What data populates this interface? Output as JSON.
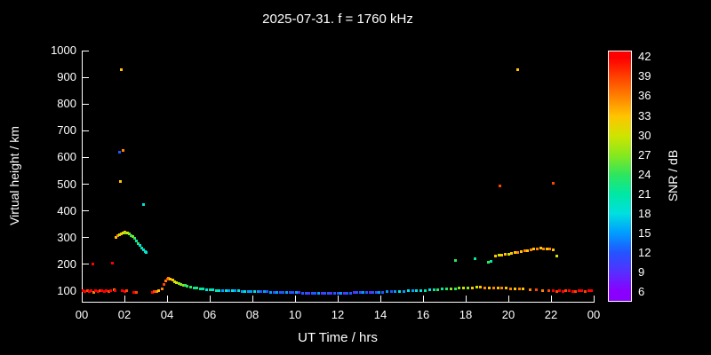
{
  "chart_data": {
    "type": "scatter",
    "title": "2025-07-31. f = 1760 kHz",
    "xlabel": "UT Time / hrs",
    "ylabel": "Virtual height / km",
    "xlim": [
      0,
      24
    ],
    "ylim": [
      60,
      1000
    ],
    "xtick_values": [
      0,
      2,
      4,
      6,
      8,
      10,
      12,
      14,
      16,
      18,
      20,
      22,
      24
    ],
    "xtick_labels": [
      "00",
      "02",
      "04",
      "06",
      "08",
      "10",
      "12",
      "14",
      "16",
      "18",
      "20",
      "22",
      "00"
    ],
    "ytick_values": [
      100,
      200,
      300,
      400,
      500,
      600,
      700,
      800,
      900,
      1000
    ],
    "background": "#000000",
    "axis_color": "#ffffff",
    "text_color": "#ffffff",
    "grid": false,
    "colorbar": {
      "label": "SNR / dB",
      "ticks": [
        6,
        9,
        12,
        15,
        18,
        21,
        24,
        27,
        30,
        33,
        36,
        39,
        42
      ],
      "range": [
        4.5,
        43
      ],
      "colors": {
        "6": "#8a00ff",
        "9": "#5530ff",
        "12": "#2255ff",
        "15": "#009dff",
        "18": "#00e0df",
        "21": "#00e8a4",
        "24": "#2ee55e",
        "27": "#86e81e",
        "30": "#cfe400",
        "33": "#ffc400",
        "36": "#ff8300",
        "39": "#ff4300",
        "42": "#ff0000"
      }
    },
    "points": [
      [
        0.05,
        100,
        42
      ],
      [
        0.15,
        98,
        42
      ],
      [
        0.25,
        100,
        39
      ],
      [
        0.35,
        97,
        42
      ],
      [
        0.45,
        102,
        42
      ],
      [
        0.5,
        200,
        42
      ],
      [
        0.55,
        95,
        36
      ],
      [
        0.65,
        100,
        42
      ],
      [
        0.75,
        99,
        42
      ],
      [
        0.85,
        103,
        39
      ],
      [
        0.95,
        100,
        42
      ],
      [
        1.05,
        98,
        42
      ],
      [
        1.15,
        100,
        42
      ],
      [
        1.25,
        97,
        39
      ],
      [
        1.35,
        100,
        42
      ],
      [
        1.45,
        205,
        42
      ],
      [
        1.5,
        104,
        36
      ],
      [
        1.55,
        100,
        42
      ],
      [
        1.6,
        300,
        33
      ],
      [
        1.68,
        306,
        36
      ],
      [
        1.75,
        620,
        12
      ],
      [
        1.76,
        311,
        30
      ],
      [
        1.8,
        510,
        33
      ],
      [
        1.84,
        315,
        33
      ],
      [
        1.85,
        930,
        33
      ],
      [
        1.9,
        100,
        42
      ],
      [
        1.92,
        318,
        30
      ],
      [
        1.95,
        625,
        36
      ],
      [
        2.0,
        320,
        33
      ],
      [
        2.0,
        97,
        42
      ],
      [
        2.08,
        318,
        27
      ],
      [
        2.1,
        100,
        39
      ],
      [
        2.16,
        316,
        30
      ],
      [
        2.24,
        313,
        27
      ],
      [
        2.32,
        309,
        24
      ],
      [
        2.4,
        303,
        27
      ],
      [
        2.45,
        95,
        42
      ],
      [
        2.48,
        296,
        24
      ],
      [
        2.55,
        94,
        39
      ],
      [
        2.56,
        288,
        21
      ],
      [
        2.64,
        279,
        24
      ],
      [
        2.72,
        270,
        18
      ],
      [
        2.8,
        262,
        21
      ],
      [
        2.88,
        255,
        18
      ],
      [
        2.9,
        425,
        18
      ],
      [
        2.96,
        249,
        21
      ],
      [
        3.04,
        245,
        18
      ],
      [
        3.3,
        95,
        42
      ],
      [
        3.4,
        97,
        39
      ],
      [
        3.5,
        99,
        36
      ],
      [
        3.6,
        101,
        33
      ],
      [
        3.75,
        108,
        36
      ],
      [
        3.85,
        125,
        39
      ],
      [
        3.95,
        138,
        36
      ],
      [
        4.0,
        145,
        39
      ],
      [
        4.05,
        147,
        36
      ],
      [
        4.15,
        144,
        33
      ],
      [
        4.25,
        140,
        33
      ],
      [
        4.35,
        136,
        30
      ],
      [
        4.45,
        132,
        30
      ],
      [
        4.55,
        128,
        27
      ],
      [
        4.65,
        125,
        27
      ],
      [
        4.75,
        122,
        27
      ],
      [
        4.85,
        120,
        24
      ],
      [
        4.95,
        118,
        24
      ],
      [
        5.1,
        115,
        24
      ],
      [
        5.25,
        113,
        21
      ],
      [
        5.4,
        111,
        24
      ],
      [
        5.55,
        109,
        21
      ],
      [
        5.7,
        107,
        21
      ],
      [
        5.85,
        106,
        18
      ],
      [
        6.0,
        105,
        21
      ],
      [
        6.15,
        104,
        18
      ],
      [
        6.3,
        103,
        21
      ],
      [
        6.45,
        102,
        18
      ],
      [
        6.6,
        102,
        15
      ],
      [
        6.75,
        101,
        18
      ],
      [
        6.9,
        101,
        15
      ],
      [
        7.05,
        100,
        18
      ],
      [
        7.2,
        100,
        15
      ],
      [
        7.35,
        100,
        18
      ],
      [
        7.5,
        99,
        15
      ],
      [
        7.65,
        99,
        18
      ],
      [
        7.8,
        99,
        15
      ],
      [
        7.95,
        98,
        15
      ],
      [
        8.1,
        98,
        18
      ],
      [
        8.25,
        98,
        15
      ],
      [
        8.4,
        97,
        12
      ],
      [
        8.55,
        97,
        15
      ],
      [
        8.7,
        97,
        12
      ],
      [
        8.85,
        96,
        15
      ],
      [
        9.0,
        96,
        12
      ],
      [
        9.15,
        96,
        15
      ],
      [
        9.3,
        95,
        12
      ],
      [
        9.45,
        95,
        12
      ],
      [
        9.6,
        95,
        15
      ],
      [
        9.75,
        94,
        12
      ],
      [
        9.9,
        94,
        12
      ],
      [
        10.05,
        94,
        15
      ],
      [
        10.2,
        94,
        9
      ],
      [
        10.35,
        93,
        12
      ],
      [
        10.5,
        93,
        12
      ],
      [
        10.65,
        93,
        9
      ],
      [
        10.8,
        93,
        12
      ],
      [
        10.95,
        93,
        12
      ],
      [
        11.1,
        93,
        15
      ],
      [
        11.25,
        93,
        9
      ],
      [
        11.4,
        93,
        12
      ],
      [
        11.55,
        93,
        12
      ],
      [
        11.7,
        93,
        9
      ],
      [
        11.85,
        93,
        12
      ],
      [
        12.0,
        93,
        12
      ],
      [
        12.15,
        93,
        15
      ],
      [
        12.3,
        93,
        9
      ],
      [
        12.45,
        93,
        12
      ],
      [
        12.6,
        93,
        12
      ],
      [
        12.75,
        94,
        9
      ],
      [
        12.9,
        94,
        12
      ],
      [
        13.05,
        94,
        12
      ],
      [
        13.2,
        94,
        15
      ],
      [
        13.35,
        95,
        12
      ],
      [
        13.5,
        95,
        9
      ],
      [
        13.65,
        95,
        12
      ],
      [
        13.8,
        96,
        12
      ],
      [
        13.95,
        96,
        15
      ],
      [
        14.1,
        96,
        12
      ],
      [
        14.3,
        97,
        15
      ],
      [
        14.5,
        97,
        12
      ],
      [
        14.7,
        98,
        15
      ],
      [
        14.9,
        98,
        18
      ],
      [
        15.1,
        99,
        15
      ],
      [
        15.3,
        100,
        18
      ],
      [
        15.5,
        100,
        15
      ],
      [
        15.7,
        101,
        18
      ],
      [
        15.9,
        102,
        18
      ],
      [
        16.1,
        103,
        21
      ],
      [
        16.3,
        104,
        18
      ],
      [
        16.5,
        105,
        21
      ],
      [
        16.7,
        106,
        24
      ],
      [
        16.9,
        107,
        21
      ],
      [
        17.1,
        108,
        24
      ],
      [
        17.3,
        108,
        27
      ],
      [
        17.5,
        109,
        24
      ],
      [
        17.5,
        215,
        24
      ],
      [
        17.7,
        110,
        27
      ],
      [
        17.9,
        111,
        30
      ],
      [
        18.1,
        112,
        27
      ],
      [
        18.3,
        113,
        33
      ],
      [
        18.45,
        222,
        21
      ],
      [
        18.5,
        114,
        30
      ],
      [
        18.7,
        114,
        33
      ],
      [
        18.9,
        113,
        36
      ],
      [
        19.05,
        208,
        24
      ],
      [
        19.1,
        112,
        33
      ],
      [
        19.2,
        212,
        21
      ],
      [
        19.3,
        112,
        36
      ],
      [
        19.4,
        230,
        33
      ],
      [
        19.5,
        111,
        33
      ],
      [
        19.55,
        233,
        30
      ],
      [
        19.6,
        495,
        39
      ],
      [
        19.7,
        110,
        36
      ],
      [
        19.7,
        235,
        33
      ],
      [
        19.85,
        237,
        33
      ],
      [
        19.9,
        110,
        33
      ],
      [
        20.0,
        239,
        30
      ],
      [
        20.1,
        109,
        36
      ],
      [
        20.15,
        241,
        33
      ],
      [
        20.3,
        243,
        33
      ],
      [
        20.3,
        108,
        33
      ],
      [
        20.45,
        245,
        36
      ],
      [
        20.45,
        930,
        33
      ],
      [
        20.5,
        108,
        36
      ],
      [
        20.6,
        247,
        33
      ],
      [
        20.7,
        107,
        33
      ],
      [
        20.75,
        250,
        36
      ],
      [
        20.9,
        252,
        33
      ],
      [
        21.0,
        106,
        36
      ],
      [
        21.05,
        255,
        36
      ],
      [
        21.2,
        257,
        33
      ],
      [
        21.3,
        104,
        39
      ],
      [
        21.35,
        259,
        36
      ],
      [
        21.5,
        260,
        33
      ],
      [
        21.6,
        102,
        36
      ],
      [
        21.65,
        259,
        36
      ],
      [
        21.8,
        257,
        33
      ],
      [
        21.9,
        100,
        39
      ],
      [
        21.95,
        256,
        36
      ],
      [
        22.1,
        255,
        33
      ],
      [
        22.1,
        505,
        39
      ],
      [
        22.1,
        100,
        42
      ],
      [
        22.25,
        232,
        30
      ],
      [
        22.25,
        98,
        39
      ],
      [
        22.4,
        100,
        42
      ],
      [
        22.55,
        97,
        42
      ],
      [
        22.7,
        100,
        39
      ],
      [
        22.85,
        100,
        42
      ],
      [
        23.0,
        99,
        42
      ],
      [
        23.15,
        98,
        39
      ],
      [
        23.3,
        100,
        42
      ],
      [
        23.45,
        100,
        42
      ],
      [
        23.6,
        99,
        39
      ],
      [
        23.75,
        100,
        42
      ],
      [
        23.9,
        100,
        42
      ]
    ]
  }
}
